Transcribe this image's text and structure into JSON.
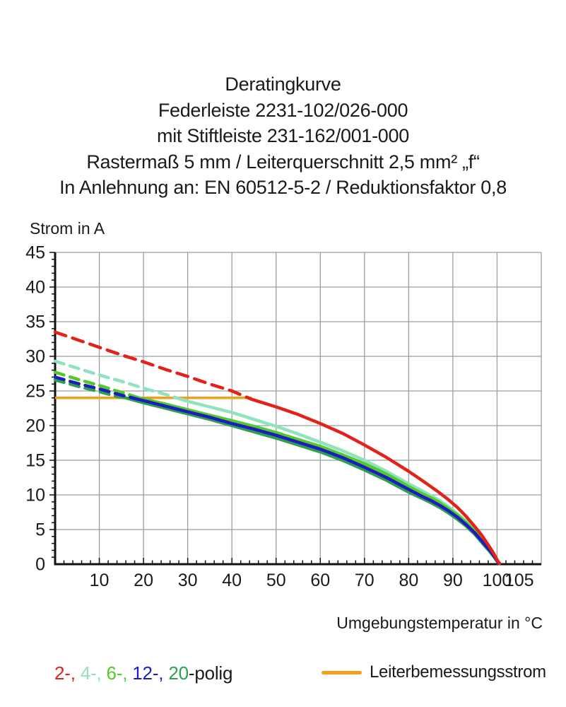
{
  "header": {
    "lines": [
      "Deratingkurve",
      "Federleiste 2231-102/026-000",
      "mit Stiftleiste 231-162/001-000",
      "Rastermaß 5 mm / Leiterquerschnitt 2,5 mm² „f“",
      "In Anlehnung an: EN 60512-5-2 / Reduktionsfaktor 0,8"
    ]
  },
  "chart_data": {
    "type": "line",
    "xlabel": "Umgebungstemperatur in °C",
    "ylabel": "Strom in A",
    "xlim": [
      0,
      110
    ],
    "ylim": [
      0,
      45
    ],
    "x_gridline_step": 10,
    "y_gridline_step": 5,
    "x_minor_tick_step": 2,
    "y_minor_tick_step": 1,
    "x_tick_labels": [
      10,
      20,
      30,
      40,
      50,
      60,
      70,
      80,
      90,
      100,
      105
    ],
    "y_tick_labels": [
      0,
      5,
      10,
      15,
      20,
      25,
      30,
      35,
      40,
      45
    ],
    "grid": true,
    "grid_color": "#98a0a5",
    "axis_color": "#111111",
    "rated_current_line": {
      "name": "Leiterbemessungsstrom",
      "y": 24,
      "x_start": 0,
      "x_end": 44.5,
      "color": "#f59e1e"
    },
    "series": [
      {
        "name": "2-polig",
        "color": "#e2231a",
        "dashed": [
          [
            0,
            33.5
          ],
          [
            5,
            32.4
          ],
          [
            10,
            31.3
          ],
          [
            15,
            30.2
          ],
          [
            20,
            29.2
          ],
          [
            25,
            28.1
          ],
          [
            30,
            27.1
          ],
          [
            35,
            26
          ],
          [
            40,
            25
          ],
          [
            44.5,
            23.8
          ]
        ],
        "solid": [
          [
            44.5,
            23.8
          ],
          [
            47,
            23.3
          ],
          [
            50,
            22.7
          ],
          [
            55,
            21.6
          ],
          [
            60,
            20.3
          ],
          [
            65,
            18.9
          ],
          [
            70,
            17.2
          ],
          [
            75,
            15.4
          ],
          [
            80,
            13.4
          ],
          [
            83,
            12.1
          ],
          [
            85,
            11.2
          ],
          [
            87,
            10.3
          ],
          [
            89,
            9.3
          ],
          [
            91,
            8.2
          ],
          [
            93,
            6.9
          ],
          [
            95,
            5.4
          ],
          [
            96.5,
            4.2
          ],
          [
            98,
            2.8
          ],
          [
            99,
            1.8
          ],
          [
            99.7,
            1
          ],
          [
            100.2,
            0.4
          ],
          [
            100.6,
            0.1
          ]
        ]
      },
      {
        "name": "4-polig",
        "color": "#8fe3bd",
        "dashed": [
          [
            0,
            29.3
          ],
          [
            5,
            28.3
          ],
          [
            10,
            27.3
          ],
          [
            15,
            26.4
          ],
          [
            20,
            25.4
          ],
          [
            25,
            24.5
          ],
          [
            27.5,
            24
          ]
        ],
        "solid": [
          [
            27.5,
            24
          ],
          [
            30,
            23.5
          ],
          [
            35,
            22.7
          ],
          [
            40,
            21.9
          ],
          [
            45,
            20.9
          ],
          [
            50,
            19.9
          ],
          [
            55,
            18.8
          ],
          [
            60,
            17.6
          ],
          [
            65,
            16.4
          ],
          [
            70,
            15
          ],
          [
            75,
            13.4
          ],
          [
            80,
            11.6
          ],
          [
            83,
            10.6
          ],
          [
            85,
            9.9
          ],
          [
            87,
            9.2
          ],
          [
            89,
            8.3
          ],
          [
            91,
            7.3
          ],
          [
            93,
            6.2
          ],
          [
            95,
            4.9
          ],
          [
            97,
            3.4
          ],
          [
            98.5,
            2.1
          ],
          [
            99.5,
            1.2
          ],
          [
            100.1,
            0.5
          ],
          [
            100.4,
            0.1
          ]
        ]
      },
      {
        "name": "6-polig",
        "color": "#53c92e",
        "dashed": [
          [
            0,
            27.7
          ],
          [
            5,
            26.7
          ],
          [
            10,
            25.8
          ],
          [
            15,
            24.8
          ],
          [
            19,
            24
          ]
        ],
        "solid": [
          [
            19,
            24
          ],
          [
            25,
            23.1
          ],
          [
            30,
            22.3
          ],
          [
            35,
            21.5
          ],
          [
            40,
            20.7
          ],
          [
            45,
            19.9
          ],
          [
            50,
            19
          ],
          [
            55,
            18
          ],
          [
            60,
            17
          ],
          [
            65,
            15.8
          ],
          [
            70,
            14.5
          ],
          [
            75,
            13
          ],
          [
            80,
            11.2
          ],
          [
            83,
            10.2
          ],
          [
            85,
            9.6
          ],
          [
            87,
            8.9
          ],
          [
            89,
            8
          ],
          [
            91,
            7.1
          ],
          [
            93,
            6
          ],
          [
            95,
            4.7
          ],
          [
            97,
            3.2
          ],
          [
            98.5,
            2
          ],
          [
            99.5,
            1.1
          ],
          [
            100.1,
            0.45
          ],
          [
            100.4,
            0.1
          ]
        ]
      },
      {
        "name": "12-polig",
        "color": "#1d1dbe",
        "dashed": [
          [
            0,
            27
          ],
          [
            5,
            26.1
          ],
          [
            10,
            25.3
          ],
          [
            15,
            24.4
          ],
          [
            17.5,
            24
          ]
        ],
        "solid": [
          [
            17.5,
            24
          ],
          [
            20,
            23.6
          ],
          [
            25,
            22.8
          ],
          [
            30,
            22
          ],
          [
            35,
            21.2
          ],
          [
            40,
            20.3
          ],
          [
            45,
            19.5
          ],
          [
            50,
            18.6
          ],
          [
            55,
            17.6
          ],
          [
            60,
            16.6
          ],
          [
            65,
            15.4
          ],
          [
            70,
            14
          ],
          [
            75,
            12.5
          ],
          [
            80,
            10.8
          ],
          [
            83,
            9.8
          ],
          [
            85,
            9.2
          ],
          [
            87,
            8.5
          ],
          [
            89,
            7.7
          ],
          [
            91,
            6.8
          ],
          [
            93,
            5.7
          ],
          [
            95,
            4.5
          ],
          [
            97,
            3
          ],
          [
            98.5,
            1.9
          ],
          [
            99.5,
            1
          ],
          [
            100.1,
            0.4
          ],
          [
            100.35,
            0.1
          ]
        ]
      },
      {
        "name": "20-polig",
        "color": "#2f9e4f",
        "dashed": [
          [
            0,
            26.6
          ],
          [
            5,
            25.7
          ],
          [
            10,
            24.9
          ],
          [
            14,
            24.2
          ],
          [
            16,
            24
          ]
        ],
        "solid": [
          [
            16,
            24
          ],
          [
            20,
            23.3
          ],
          [
            25,
            22.5
          ],
          [
            30,
            21.7
          ],
          [
            35,
            20.9
          ],
          [
            40,
            20
          ],
          [
            45,
            19.1
          ],
          [
            50,
            18.2
          ],
          [
            55,
            17.2
          ],
          [
            60,
            16.2
          ],
          [
            65,
            15
          ],
          [
            70,
            13.6
          ],
          [
            75,
            12.1
          ],
          [
            80,
            10.4
          ],
          [
            83,
            9.5
          ],
          [
            85,
            8.9
          ],
          [
            87,
            8.2
          ],
          [
            89,
            7.4
          ],
          [
            91,
            6.5
          ],
          [
            93,
            5.5
          ],
          [
            95,
            4.3
          ],
          [
            97,
            2.8
          ],
          [
            98.5,
            1.7
          ],
          [
            99.5,
            0.9
          ],
          [
            100.1,
            0.35
          ],
          [
            100.3,
            0.1
          ]
        ]
      }
    ]
  },
  "legend": {
    "poles_segments": [
      {
        "text": "2-, ",
        "color": "#e2231a"
      },
      {
        "text": "4-, ",
        "color": "#8fe3bd"
      },
      {
        "text": "6-, ",
        "color": "#53c92e"
      },
      {
        "text": "12-, ",
        "color": "#1d1dbe"
      },
      {
        "text": "20",
        "color": "#2f9e4f"
      },
      {
        "text": "-polig",
        "color": "#1a1a1a"
      }
    ],
    "rated_current_label": "Leiterbemessungsstrom"
  }
}
